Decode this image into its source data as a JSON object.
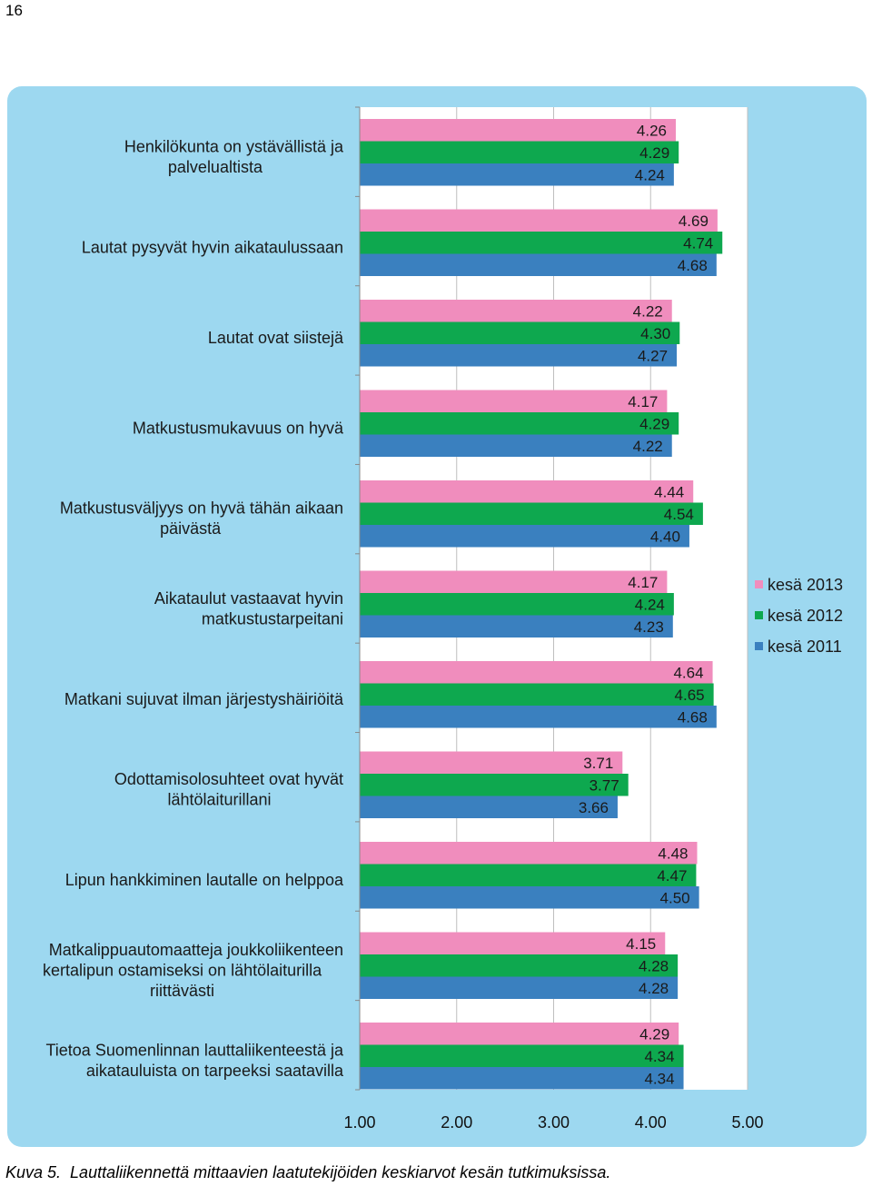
{
  "page": {
    "number": "16"
  },
  "caption": {
    "label": "Kuva 5.",
    "text": "Lauttaliikennettä mittaavien laatutekijöiden keskiarvot kesän tutkimuksissa."
  },
  "colors": {
    "panel_bg": "#9dd8f0",
    "plot_bg": "#ffffff",
    "series": [
      "#f08dbd",
      "#0ea84f",
      "#3a80bf"
    ]
  },
  "chart_data": {
    "type": "bar",
    "orientation": "horizontal",
    "title": "",
    "xlabel": "",
    "ylabel": "",
    "xlim": [
      1.0,
      5.0
    ],
    "xticks": [
      "1.00",
      "2.00",
      "3.00",
      "4.00",
      "5.00"
    ],
    "grid": "vertical",
    "legend_position": "right",
    "categories": [
      [
        "Henkilökunta on ystävällistä ja",
        "palvelualtista"
      ],
      [
        "Lautat pysyvät hyvin aikataulussaan"
      ],
      [
        "Lautat ovat siistejä"
      ],
      [
        "Matkustusmukavuus on hyvä"
      ],
      [
        "Matkustusväljyys on hyvä tähän aikaan",
        "päivästä"
      ],
      [
        "Aikataulut vastaavat hyvin",
        "matkustustarpeitani"
      ],
      [
        "Matkani sujuvat ilman järjestyshäiriöitä"
      ],
      [
        "Odottamisolosuhteet ovat hyvät",
        "lähtölaiturillani"
      ],
      [
        "Lipun hankkiminen lautalle on helppoa"
      ],
      [
        "Matkalippuautomaatteja joukkoliikenteen",
        "kertalipun ostamiseksi on lähtölaiturilla",
        "riittävästi"
      ],
      [
        "Tietoa Suomenlinnan lauttaliikenteestä ja",
        "aikatauluista on tarpeeksi saatavilla"
      ]
    ],
    "series": [
      {
        "name": "kesä 2013",
        "values": [
          4.26,
          4.69,
          4.22,
          4.17,
          4.44,
          4.17,
          4.64,
          3.71,
          4.48,
          4.15,
          4.29
        ],
        "labels": [
          "4.26",
          "4.69",
          "4.22",
          "4.17",
          "4.44",
          "4.17",
          "4.64",
          "3.71",
          "4.48",
          "4.15",
          "4.29"
        ]
      },
      {
        "name": "kesä 2012",
        "values": [
          4.29,
          4.74,
          4.3,
          4.29,
          4.54,
          4.24,
          4.65,
          3.77,
          4.47,
          4.28,
          4.34
        ],
        "labels": [
          "4.29",
          "4.74",
          "4.30",
          "4.29",
          "4.54",
          "4.24",
          "4.65",
          "3.77",
          "4.47",
          "4.28",
          "4.34"
        ]
      },
      {
        "name": "kesä 2011",
        "values": [
          4.24,
          4.68,
          4.27,
          4.22,
          4.4,
          4.23,
          4.68,
          3.66,
          4.5,
          4.28,
          4.34
        ],
        "labels": [
          "4.24",
          "4.68",
          "4.27",
          "4.22",
          "4.40",
          "4.23",
          "4.68",
          "3.66",
          "4.50",
          "4.28",
          "4.34"
        ]
      }
    ]
  }
}
